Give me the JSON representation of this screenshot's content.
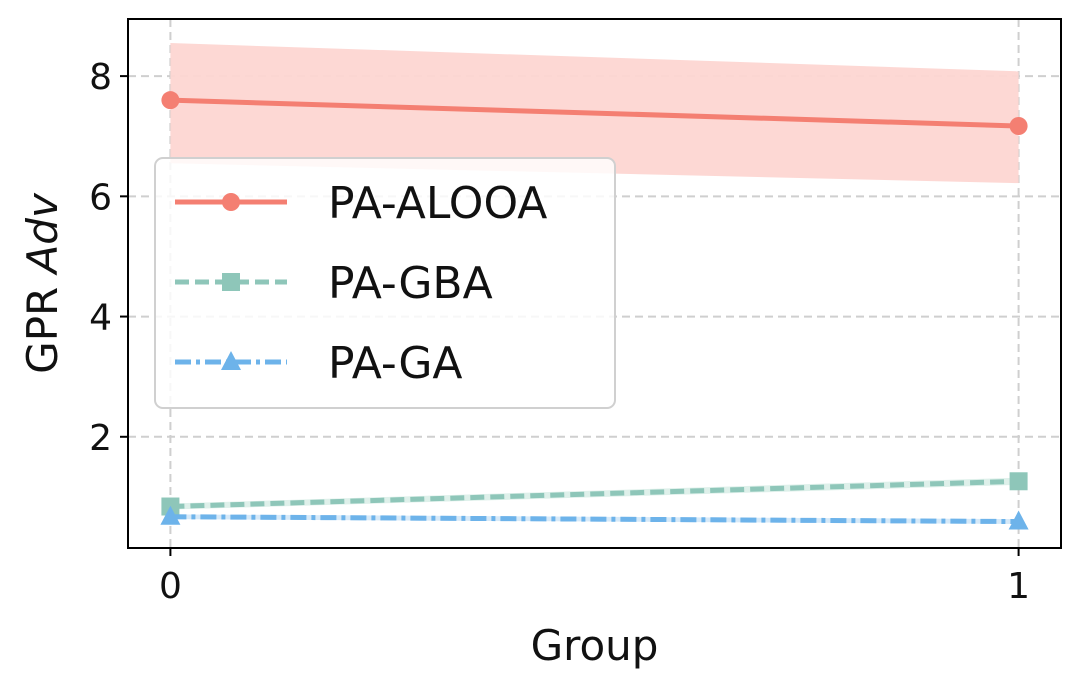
{
  "chart_data": {
    "type": "line",
    "xlabel": "Group",
    "ylabel_prefix": "GPR ",
    "ylabel_italic": "Adv",
    "x": [
      0,
      1
    ],
    "x_ticks": [
      "0",
      "1"
    ],
    "xlim": [
      -0.05,
      1.05
    ],
    "ylim": [
      0.15,
      8.95
    ],
    "y_ticks": [
      2,
      4,
      6,
      8
    ],
    "y_tick_labels": [
      "2",
      "4",
      "6",
      "8"
    ],
    "grid": true,
    "legend_position": "center-left",
    "series": [
      {
        "name": "PA-ALOOA",
        "values": [
          7.6,
          7.17
        ],
        "band_lower": [
          6.55,
          6.22
        ],
        "band_upper": [
          8.55,
          8.08
        ],
        "color": "#f47f72",
        "band_color": "#fdd6d2",
        "marker": "circle",
        "linestyle": "solid"
      },
      {
        "name": "PA-GBA",
        "values": [
          0.84,
          1.26
        ],
        "band_lower": [
          0.79,
          1.2
        ],
        "band_upper": [
          0.89,
          1.32
        ],
        "color": "#8ec6b9",
        "band_color": "#dcefe9",
        "marker": "square",
        "linestyle": "dashed"
      },
      {
        "name": "PA-GA",
        "values": [
          0.67,
          0.59
        ],
        "band_lower": [
          0.63,
          0.55
        ],
        "band_upper": [
          0.71,
          0.63
        ],
        "color": "#6db3ea",
        "band_color": "#d4e8f8",
        "marker": "triangle",
        "linestyle": "dashdot"
      }
    ]
  }
}
